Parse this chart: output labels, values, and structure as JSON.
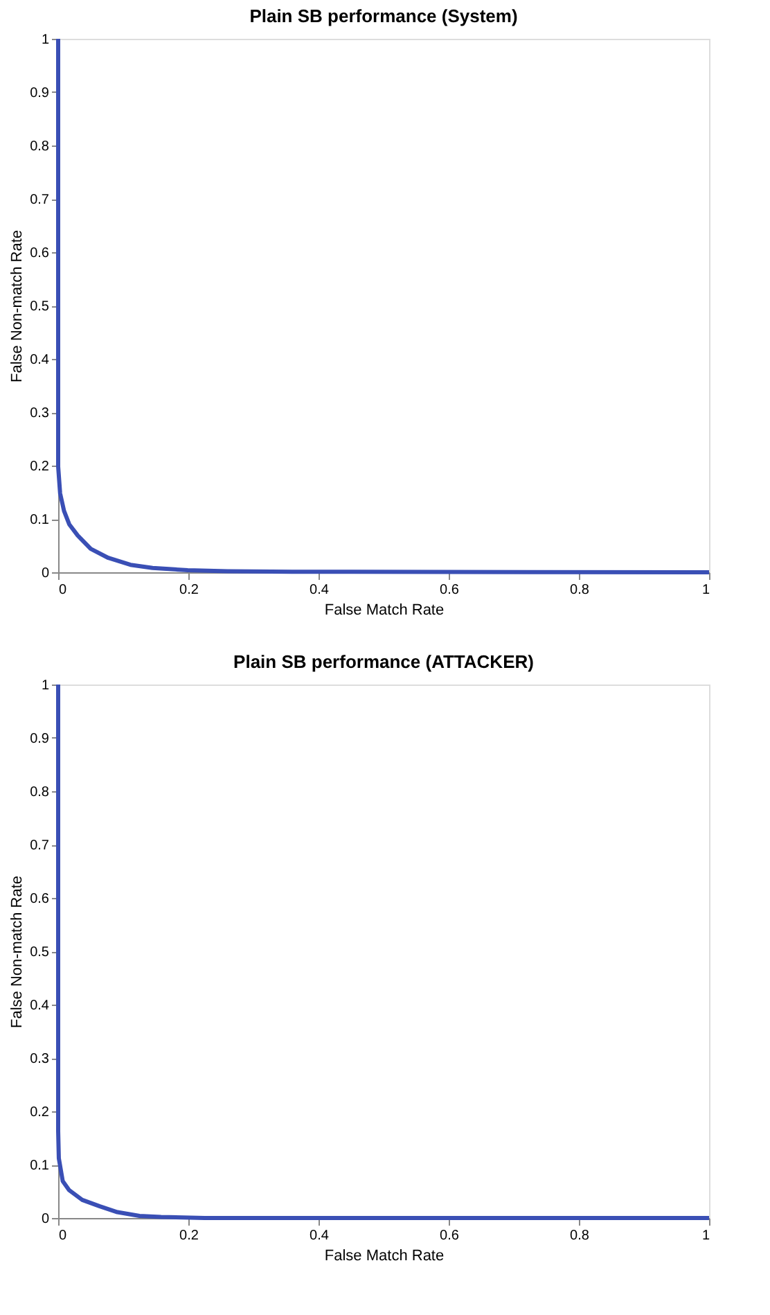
{
  "chart_data": [
    {
      "type": "line",
      "title": "Plain SB performance (System)",
      "xlabel": "False Match Rate",
      "ylabel": "False Non-match Rate",
      "x": [
        0,
        0,
        0.003,
        0.009,
        0.017,
        0.03,
        0.05,
        0.077,
        0.111,
        0.145,
        0.199,
        0.26,
        0.36,
        1
      ],
      "series": [
        {
          "color": "#3a4fb5",
          "values": [
            1,
            0.198,
            0.148,
            0.115,
            0.09,
            0.069,
            0.044,
            0.027,
            0.014,
            0.008,
            0.004,
            0.002,
            0.001,
            0
          ]
        }
      ],
      "xlim": [
        0,
        1
      ],
      "ylim": [
        0,
        1
      ],
      "xticks": [
        0,
        0.2,
        0.4,
        0.6,
        0.8,
        1
      ],
      "yticks": [
        0,
        0.1,
        0.2,
        0.3,
        0.4,
        0.5,
        0.6,
        0.7,
        0.8,
        0.9,
        1
      ],
      "grid": false,
      "legend": false
    },
    {
      "type": "line",
      "title": "Plain SB performance (ATTACKER)",
      "xlabel": "False Match Rate",
      "ylabel": "False Non-match Rate",
      "x": [
        0,
        0,
        0.001,
        0.007,
        0.017,
        0.037,
        0.064,
        0.091,
        0.125,
        0.158,
        0.225,
        1
      ],
      "series": [
        {
          "color": "#3a4fb5",
          "values": [
            1,
            0.163,
            0.112,
            0.069,
            0.052,
            0.034,
            0.022,
            0.011,
            0.004,
            0.002,
            0,
            0
          ]
        }
      ],
      "xlim": [
        0,
        1
      ],
      "ylim": [
        0,
        1
      ],
      "xticks": [
        0,
        0.2,
        0.4,
        0.6,
        0.8,
        1
      ],
      "yticks": [
        0,
        0.1,
        0.2,
        0.3,
        0.4,
        0.5,
        0.6,
        0.7,
        0.8,
        0.9,
        1
      ],
      "grid": false,
      "legend": false
    }
  ]
}
